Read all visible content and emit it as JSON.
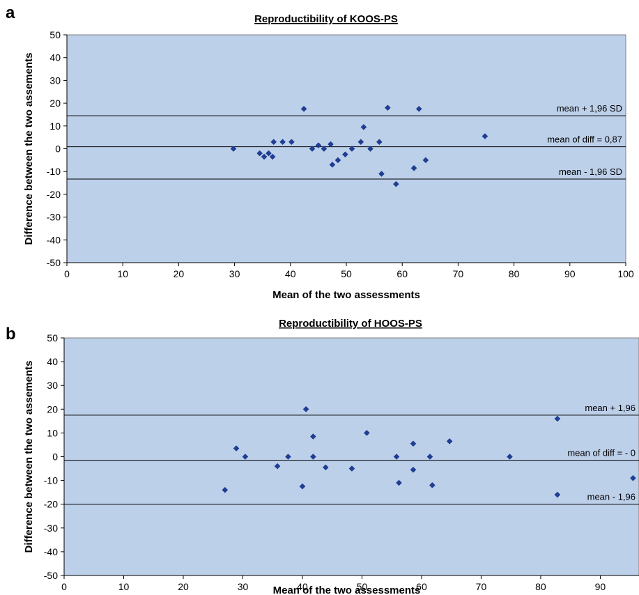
{
  "chart_data": [
    {
      "type": "scatter",
      "panel_label": "a",
      "title": "Reproductibility of KOOS-PS",
      "xlabel": "Mean of the two assessments",
      "ylabel": "Difference between the two assements",
      "xlim": [
        0,
        100
      ],
      "ylim": [
        -50,
        50
      ],
      "x_ticks": [
        "0",
        "10",
        "20",
        "30",
        "40",
        "50",
        "60",
        "70",
        "80",
        "90",
        "100"
      ],
      "y_ticks": [
        "50",
        "40",
        "30",
        "20",
        "10",
        "0",
        "-10",
        "-20",
        "-30",
        "-40",
        "-50"
      ],
      "grid": false,
      "plot_background": "#bdd0ea",
      "point_color": "#1f3f96",
      "reference_lines": [
        {
          "label": "mean + 1,96 SD",
          "y": 14.5
        },
        {
          "label": "mean of diff = 0,87",
          "y": 0.87
        },
        {
          "label": "mean - 1,96 SD",
          "y": -13.3
        }
      ],
      "points": [
        {
          "x": 29.8,
          "y": 0
        },
        {
          "x": 34.5,
          "y": -2
        },
        {
          "x": 35.3,
          "y": -3.5
        },
        {
          "x": 36.1,
          "y": -2
        },
        {
          "x": 36.8,
          "y": -3.5
        },
        {
          "x": 37,
          "y": 3
        },
        {
          "x": 38.6,
          "y": 3
        },
        {
          "x": 40.2,
          "y": 3
        },
        {
          "x": 42.4,
          "y": 17.5
        },
        {
          "x": 43.9,
          "y": 0
        },
        {
          "x": 45,
          "y": 1.5
        },
        {
          "x": 46,
          "y": 0
        },
        {
          "x": 47.2,
          "y": 2
        },
        {
          "x": 47.5,
          "y": -7
        },
        {
          "x": 48.5,
          "y": -5
        },
        {
          "x": 49.8,
          "y": -2.5
        },
        {
          "x": 51,
          "y": 0
        },
        {
          "x": 52.6,
          "y": 3
        },
        {
          "x": 53.1,
          "y": 9.5
        },
        {
          "x": 54.3,
          "y": 0
        },
        {
          "x": 55.9,
          "y": 3
        },
        {
          "x": 56.3,
          "y": -11
        },
        {
          "x": 57.4,
          "y": 18
        },
        {
          "x": 58.9,
          "y": -15.5
        },
        {
          "x": 62.1,
          "y": -8.5
        },
        {
          "x": 63,
          "y": 17.5
        },
        {
          "x": 64.2,
          "y": -5
        },
        {
          "x": 74.8,
          "y": 5.5
        }
      ]
    },
    {
      "type": "scatter",
      "panel_label": "b",
      "title": "Reproductibility of HOOS-PS",
      "xlabel": "Mean of the two assessments",
      "ylabel": "Difference between the two assements",
      "xlim": [
        0,
        96.5
      ],
      "ylim": [
        -50,
        50
      ],
      "x_ticks": [
        "0",
        "10",
        "20",
        "30",
        "40",
        "50",
        "60",
        "70",
        "80",
        "90"
      ],
      "y_ticks": [
        "50",
        "40",
        "30",
        "20",
        "10",
        "0",
        "-10",
        "-20",
        "-30",
        "-40",
        "-50"
      ],
      "grid": false,
      "plot_background": "#bdd0ea",
      "point_color": "#1f3f96",
      "reference_lines": [
        {
          "label": "mean + 1,96",
          "y": 17.5
        },
        {
          "label": "mean of diff = - 0",
          "y": -1.5
        },
        {
          "label": "mean - 1,96",
          "y": -20
        }
      ],
      "points": [
        {
          "x": 27,
          "y": -14
        },
        {
          "x": 28.9,
          "y": 3.5
        },
        {
          "x": 30.4,
          "y": 0
        },
        {
          "x": 35.8,
          "y": -4
        },
        {
          "x": 37.6,
          "y": 0
        },
        {
          "x": 40,
          "y": -12.5
        },
        {
          "x": 40.6,
          "y": 20
        },
        {
          "x": 41.8,
          "y": 8.5
        },
        {
          "x": 41.8,
          "y": 0
        },
        {
          "x": 43.9,
          "y": -4.5
        },
        {
          "x": 48.3,
          "y": -5
        },
        {
          "x": 50.8,
          "y": 10
        },
        {
          "x": 55.8,
          "y": 0
        },
        {
          "x": 56.2,
          "y": -11
        },
        {
          "x": 58.6,
          "y": 5.5
        },
        {
          "x": 58.6,
          "y": -5.5
        },
        {
          "x": 61.4,
          "y": 0
        },
        {
          "x": 61.8,
          "y": -12
        },
        {
          "x": 64.7,
          "y": 6.5
        },
        {
          "x": 74.8,
          "y": 0
        },
        {
          "x": 82.8,
          "y": 16
        },
        {
          "x": 82.8,
          "y": -16
        },
        {
          "x": 95.5,
          "y": -9
        }
      ]
    }
  ]
}
